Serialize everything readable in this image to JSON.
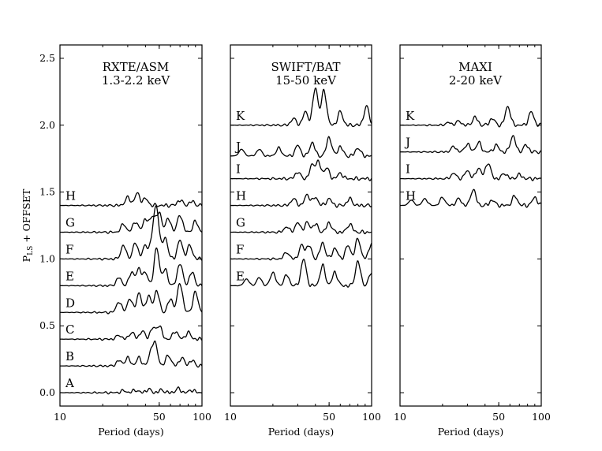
{
  "chart_data": {
    "type": "line",
    "ylabel": "P_LS + OFFSET",
    "ylabel_main": "P",
    "ylabel_sub": "LS",
    "ylabel_tail": " + OFFSET",
    "ylim": [
      -0.1,
      2.6
    ],
    "yticks": [
      "0.0",
      "0.5",
      "1.0",
      "1.5",
      "2.0",
      "2.5"
    ],
    "xscale": "log",
    "xlim": [
      10,
      100
    ],
    "panels": [
      {
        "title": "RXTE/ASM",
        "subtitle": "1.3-2.2 keV",
        "xlabel": "Period (days)",
        "xticks": [
          "10",
          "50",
          "100"
        ],
        "series": [
          {
            "label": "A",
            "offset": 0.0,
            "peaks": [
              [
                28,
                0.015
              ],
              [
                34,
                0.02
              ],
              [
                42,
                0.025
              ],
              [
                52,
                0.02
              ],
              [
                68,
                0.03
              ],
              [
                85,
                0.02
              ]
            ]
          },
          {
            "label": "B",
            "offset": 0.2,
            "peaks": [
              [
                26,
                0.04
              ],
              [
                30,
                0.06
              ],
              [
                36,
                0.06
              ],
              [
                44,
                0.1
              ],
              [
                47,
                0.14
              ],
              [
                58,
                0.08
              ],
              [
                72,
                0.06
              ],
              [
                85,
                0.04
              ]
            ]
          },
          {
            "label": "C",
            "offset": 0.4,
            "peaks": [
              [
                26,
                0.03
              ],
              [
                32,
                0.05
              ],
              [
                38,
                0.06
              ],
              [
                45,
                0.08
              ],
              [
                50,
                0.1
              ],
              [
                65,
                0.06
              ],
              [
                80,
                0.05
              ]
            ]
          },
          {
            "label": "D",
            "offset": 0.6,
            "peaks": [
              [
                26,
                0.08
              ],
              [
                31,
                0.1
              ],
              [
                36,
                0.14
              ],
              [
                42,
                0.12
              ],
              [
                48,
                0.16
              ],
              [
                60,
                0.1
              ],
              [
                70,
                0.22
              ],
              [
                90,
                0.15
              ]
            ]
          },
          {
            "label": "E",
            "offset": 0.8,
            "peaks": [
              [
                26,
                0.06
              ],
              [
                32,
                0.1
              ],
              [
                36,
                0.12
              ],
              [
                40,
                0.09
              ],
              [
                48,
                0.28
              ],
              [
                55,
                0.12
              ],
              [
                70,
                0.17
              ],
              [
                85,
                0.1
              ]
            ]
          },
          {
            "label": "F",
            "offset": 1.0,
            "peaks": [
              [
                28,
                0.1
              ],
              [
                34,
                0.12
              ],
              [
                40,
                0.1
              ],
              [
                45,
                0.14
              ],
              [
                48,
                0.35
              ],
              [
                55,
                0.16
              ],
              [
                70,
                0.14
              ],
              [
                82,
                0.1
              ]
            ]
          },
          {
            "label": "G",
            "offset": 1.2,
            "peaks": [
              [
                28,
                0.06
              ],
              [
                34,
                0.08
              ],
              [
                40,
                0.1
              ],
              [
                45,
                0.12
              ],
              [
                50,
                0.14
              ],
              [
                58,
                0.1
              ],
              [
                70,
                0.13
              ],
              [
                90,
                0.08
              ]
            ]
          },
          {
            "label": "H",
            "offset": 1.4,
            "peaks": [
              [
                30,
                0.06
              ],
              [
                35,
                0.09
              ],
              [
                40,
                0.05
              ],
              [
                70,
                0.04
              ],
              [
                85,
                0.03
              ]
            ]
          }
        ]
      },
      {
        "title": "SWIFT/BAT",
        "subtitle": "15-50 keV",
        "xlabel": "Period (days)",
        "xticks": [
          "10",
          "50",
          "100"
        ],
        "series": [
          {
            "label": "E",
            "offset": 0.8,
            "peaks": [
              [
                13,
                0.05
              ],
              [
                16,
                0.06
              ],
              [
                20,
                0.1
              ],
              [
                25,
                0.08
              ],
              [
                33,
                0.2
              ],
              [
                45,
                0.15
              ],
              [
                55,
                0.1
              ],
              [
                80,
                0.18
              ],
              [
                100,
                0.1
              ]
            ]
          },
          {
            "label": "F",
            "offset": 1.0,
            "peaks": [
              [
                25,
                0.05
              ],
              [
                32,
                0.1
              ],
              [
                36,
                0.1
              ],
              [
                45,
                0.12
              ],
              [
                55,
                0.08
              ],
              [
                68,
                0.1
              ],
              [
                80,
                0.15
              ],
              [
                100,
                0.12
              ]
            ]
          },
          {
            "label": "G",
            "offset": 1.2,
            "peaks": [
              [
                25,
                0.04
              ],
              [
                30,
                0.07
              ],
              [
                35,
                0.07
              ],
              [
                40,
                0.06
              ],
              [
                50,
                0.07
              ],
              [
                70,
                0.06
              ]
            ]
          },
          {
            "label": "H",
            "offset": 1.4,
            "peaks": [
              [
                28,
                0.05
              ],
              [
                35,
                0.08
              ],
              [
                40,
                0.06
              ],
              [
                50,
                0.05
              ],
              [
                70,
                0.05
              ]
            ]
          },
          {
            "label": "I",
            "offset": 1.6,
            "peaks": [
              [
                30,
                0.05
              ],
              [
                38,
                0.1
              ],
              [
                42,
                0.12
              ],
              [
                48,
                0.08
              ],
              [
                60,
                0.04
              ]
            ]
          },
          {
            "label": "J",
            "offset": 1.77,
            "peaks": [
              [
                12,
                0.05
              ],
              [
                16,
                0.05
              ],
              [
                22,
                0.06
              ],
              [
                30,
                0.08
              ],
              [
                38,
                0.1
              ],
              [
                50,
                0.14
              ],
              [
                60,
                0.07
              ],
              [
                80,
                0.06
              ]
            ]
          },
          {
            "label": "K",
            "offset": 2.0,
            "peaks": [
              [
                28,
                0.05
              ],
              [
                34,
                0.1
              ],
              [
                40,
                0.28
              ],
              [
                46,
                0.26
              ],
              [
                60,
                0.1
              ],
              [
                92,
                0.14
              ]
            ]
          }
        ]
      },
      {
        "title": "MAXI",
        "subtitle": "2-20 keV",
        "xlabel": "Period (days)",
        "xticks": [
          "10",
          "50",
          "100"
        ],
        "series": [
          {
            "label": "H",
            "offset": 1.4,
            "peaks": [
              [
                12,
                0.04
              ],
              [
                15,
                0.05
              ],
              [
                20,
                0.06
              ],
              [
                26,
                0.05
              ],
              [
                33,
                0.12
              ],
              [
                45,
                0.04
              ],
              [
                65,
                0.07
              ],
              [
                90,
                0.06
              ]
            ]
          },
          {
            "label": "I",
            "offset": 1.6,
            "peaks": [
              [
                24,
                0.04
              ],
              [
                30,
                0.06
              ],
              [
                36,
                0.08
              ],
              [
                42,
                0.12
              ],
              [
                55,
                0.04
              ],
              [
                70,
                0.03
              ]
            ]
          },
          {
            "label": "J",
            "offset": 1.8,
            "peaks": [
              [
                24,
                0.04
              ],
              [
                30,
                0.06
              ],
              [
                36,
                0.07
              ],
              [
                48,
                0.05
              ],
              [
                63,
                0.12
              ],
              [
                78,
                0.05
              ]
            ]
          },
          {
            "label": "K",
            "offset": 2.0,
            "peaks": [
              [
                22,
                0.02
              ],
              [
                26,
                0.03
              ],
              [
                34,
                0.06
              ],
              [
                45,
                0.05
              ],
              [
                58,
                0.14
              ],
              [
                85,
                0.1
              ]
            ]
          }
        ]
      }
    ]
  }
}
